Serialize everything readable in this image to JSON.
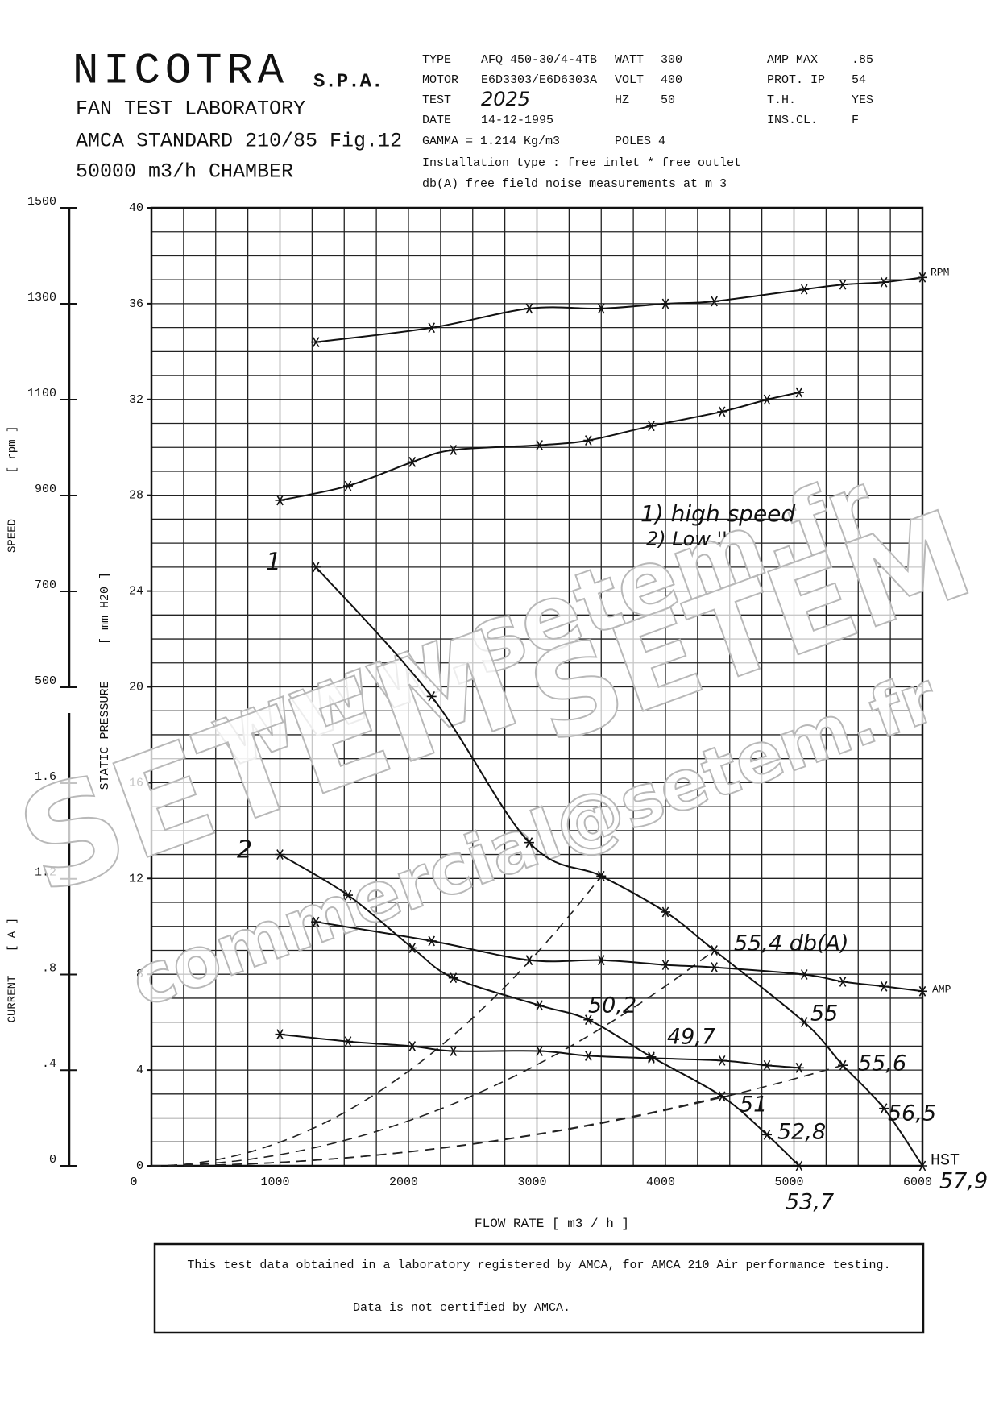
{
  "header": {
    "title": "NICOTRA",
    "company_suffix": "S.P.A.",
    "lines": [
      "FAN TEST LABORATORY",
      "AMCA STANDARD 210/85  Fig.12",
      "50000 m3/h  CHAMBER"
    ],
    "info": [
      "TYPE",
      "AFQ 450-30/4-4TB",
      "WATT",
      "300",
      "AMP MAX",
      ".85",
      "MOTOR",
      "E6D3303/E6D6303A",
      "VOLT",
      "400",
      "PROT. IP",
      "54",
      "TEST",
      "2025",
      "HZ",
      "50",
      "T.H.",
      "YES",
      "DATE",
      "14-12-1995",
      "INS.CL.",
      "F",
      "GAMMA = 1.214 Kg/m3",
      "POLES 4",
      "Installation type : free inlet * free outlet",
      "db(A) free field noise measurements at m 3"
    ]
  },
  "chart_data": {
    "type": "line",
    "x_label": "FLOW RATE [ m3 / h ]",
    "y_label": "STATIC PRESSURE",
    "y_unit": "[ mm H20 ]",
    "xlim": [
      0,
      6000
    ],
    "xticks": [
      0,
      1000,
      2000,
      3000,
      4000,
      5000,
      6000
    ],
    "xminor": [
      0,
      250,
      500,
      750,
      1000,
      1250,
      1500,
      1750,
      2000,
      2250,
      2500,
      2750,
      3000,
      3250,
      3500,
      3750,
      4000,
      4250,
      4500,
      4750,
      5000,
      5250,
      5500,
      5750,
      6000
    ],
    "ylim": [
      0,
      40
    ],
    "yticks": [
      0,
      4,
      8,
      12,
      16,
      20,
      24,
      28,
      32,
      36,
      40
    ],
    "yminor": [
      0,
      1,
      2,
      3,
      4,
      5,
      6,
      7,
      8,
      9,
      10,
      11,
      12,
      13,
      14,
      15,
      16,
      17,
      18,
      19,
      20,
      21,
      22,
      23,
      24,
      25,
      26,
      27,
      28,
      29,
      30,
      31,
      32,
      33,
      34,
      35,
      36,
      37,
      38,
      39,
      40
    ],
    "speed_axis": {
      "label": "SPEED",
      "unit": "[ rpm ]",
      "lim": [
        500,
        1500
      ],
      "ticks": [
        500,
        700,
        900,
        1100,
        1300,
        1500
      ]
    },
    "current_axis": {
      "label": "CURRENT",
      "unit": "[ A ]",
      "lim": [
        0,
        1.6
      ],
      "ticks": [
        0,
        {
          "value": 0.4,
          "label": ".4"
        },
        {
          "value": 0.8,
          "label": ".8"
        },
        1.2,
        1.6
      ]
    },
    "grid": true,
    "series": [
      {
        "axis": "speed",
        "color": "#111",
        "x": [
          1280,
          2180,
          2940,
          3500,
          4000,
          4380,
          5080,
          5380,
          5700,
          6000
        ],
        "values": [
          1220,
          1250,
          1290,
          1290,
          1300,
          1305,
          1330,
          1340,
          1345,
          1355
        ]
      },
      {
        "axis": "speed",
        "color": "#111",
        "x": [
          1000,
          1530,
          2030,
          2350,
          3020,
          3400,
          3890,
          4440,
          4790,
          5040
        ],
        "values": [
          890,
          920,
          970,
          995,
          1005,
          1015,
          1045,
          1075,
          1100,
          1115
        ]
      },
      {
        "axis": "pressure",
        "color": "#111",
        "x": [
          1280,
          2180,
          2940,
          3500,
          4000,
          4380,
          5080,
          5380,
          5700,
          6000
        ],
        "values": [
          25,
          19.6,
          13.5,
          12.1,
          10.6,
          9.0,
          6.0,
          4.2,
          2.4,
          0
        ]
      },
      {
        "axis": "pressure",
        "color": "#111",
        "x": [
          1000,
          1530,
          2030,
          2350,
          3020,
          3400,
          3890,
          4440,
          4790,
          5040
        ],
        "values": [
          13.0,
          11.3,
          9.1,
          7.85,
          6.7,
          6.1,
          4.55,
          2.9,
          1.3,
          0
        ]
      },
      {
        "axis": "current",
        "color": "#111",
        "x": [
          1280,
          2180,
          2940,
          3500,
          4000,
          4380,
          5080,
          5380,
          5700,
          6000
        ],
        "values": [
          1.02,
          0.94,
          0.86,
          0.86,
          0.84,
          0.83,
          0.8,
          0.77,
          0.75,
          0.73
        ]
      },
      {
        "axis": "current",
        "color": "#111",
        "x": [
          1000,
          1530,
          2030,
          2350,
          3020,
          3400,
          3890,
          4440,
          4790,
          5040
        ],
        "values": [
          0.55,
          0.52,
          0.5,
          0.48,
          0.48,
          0.46,
          0.45,
          0.44,
          0.42,
          0.41
        ]
      }
    ],
    "labels": {
      "rpm": "RPM",
      "amp": "AMP",
      "hst": "HST",
      "one": "1",
      "two": "2"
    },
    "notes": [
      "1) high speed",
      "2) Low  ''"
    ],
    "annotations": [
      "55,4 db(A)",
      "55",
      "55,6",
      "56,5",
      "57,9",
      "53,7",
      "50,2",
      "49,7",
      "51",
      "52,8"
    ]
  },
  "watermark": [
    "www.setem.fr",
    "SETEM",
    "SETEM",
    "commercial@setem.fr"
  ],
  "footer": [
    "This test data obtained in a laboratory registered by AMCA, for  AMCA 210 Air performance testing.",
    "Data is not certified by AMCA."
  ]
}
